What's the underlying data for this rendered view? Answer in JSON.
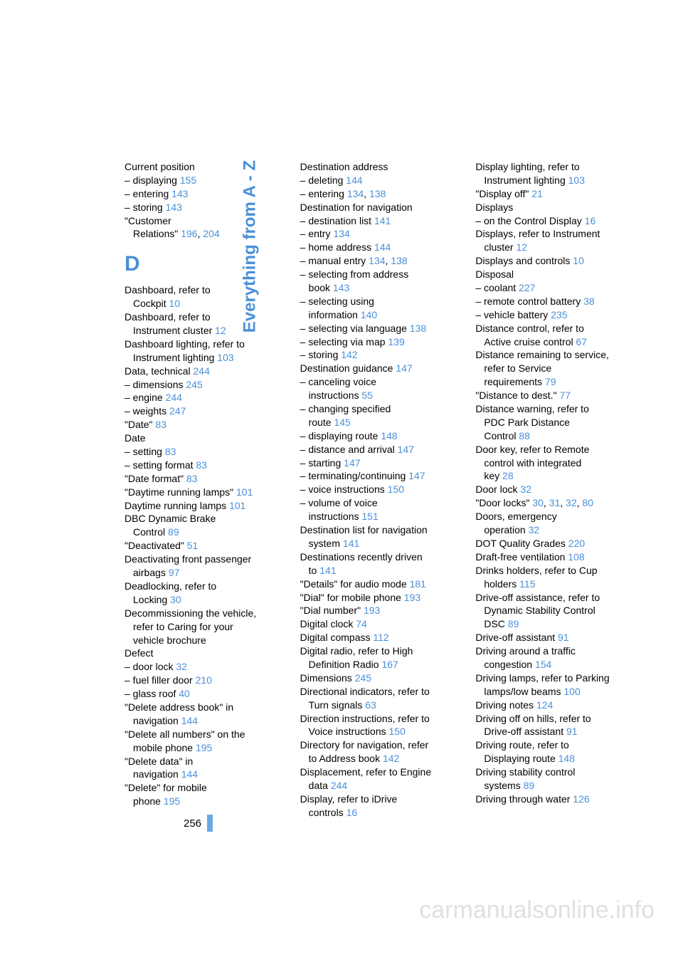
{
  "side_title": "Everything from A - Z",
  "page_number": "256",
  "watermark": "carmanualsonline.info",
  "section_letter": "D",
  "col1": [
    {
      "t": "Current position",
      "wrap": false
    },
    {
      "t": "– displaying ",
      "r": "155",
      "wrap": false
    },
    {
      "t": "– entering ",
      "r": "143",
      "wrap": false
    },
    {
      "t": "– storing ",
      "r": "143",
      "wrap": false
    },
    {
      "t": "\"Customer",
      "wrap": false
    },
    {
      "t": "Relations\" ",
      "r": "196",
      "r2": "204",
      "wrap": true,
      "indent": true
    }
  ],
  "col1b": [
    {
      "t": "Dashboard, refer to",
      "wrap": false
    },
    {
      "t": "Cockpit ",
      "r": "10",
      "indent": true
    },
    {
      "t": "Dashboard, refer to",
      "wrap": false
    },
    {
      "t": "Instrument cluster ",
      "r": "12",
      "indent": true
    },
    {
      "t": "Dashboard lighting, refer to",
      "wrap": false
    },
    {
      "t": "Instrument lighting ",
      "r": "103",
      "indent": true
    },
    {
      "t": "Data, technical ",
      "r": "244"
    },
    {
      "t": "– dimensions ",
      "r": "245"
    },
    {
      "t": "– engine ",
      "r": "244"
    },
    {
      "t": "– weights ",
      "r": "247"
    },
    {
      "t": "\"Date\" ",
      "r": "83"
    },
    {
      "t": "Date"
    },
    {
      "t": "– setting ",
      "r": "83"
    },
    {
      "t": "– setting format ",
      "r": "83"
    },
    {
      "t": "\"Date format\" ",
      "r": "83"
    },
    {
      "t": "\"Daytime running lamps\" ",
      "r": "101"
    },
    {
      "t": "Daytime running lamps ",
      "r": "101"
    },
    {
      "t": "DBC Dynamic Brake"
    },
    {
      "t": "Control ",
      "r": "89",
      "indent": true
    },
    {
      "t": "\"Deactivated\" ",
      "r": "51"
    },
    {
      "t": "Deactivating front passenger"
    },
    {
      "t": "airbags ",
      "r": "97",
      "indent": true
    },
    {
      "t": "Deadlocking, refer to"
    },
    {
      "t": "Locking ",
      "r": "30",
      "indent": true
    },
    {
      "t": "Decommissioning the vehicle,"
    },
    {
      "t": "refer to Caring for your",
      "indent": true
    },
    {
      "t": "vehicle brochure",
      "indent": true
    },
    {
      "t": "Defect"
    },
    {
      "t": "– door lock ",
      "r": "32"
    },
    {
      "t": "– fuel filler door ",
      "r": "210"
    },
    {
      "t": "– glass roof ",
      "r": "40"
    },
    {
      "t": "\"Delete address book\" in"
    },
    {
      "t": "navigation ",
      "r": "144",
      "indent": true
    },
    {
      "t": "\"Delete all numbers\" on the"
    },
    {
      "t": "mobile phone ",
      "r": "195",
      "indent": true
    },
    {
      "t": "\"Delete data\" in"
    },
    {
      "t": "navigation ",
      "r": "144",
      "indent": true
    },
    {
      "t": "\"Delete\" for mobile"
    },
    {
      "t": "phone ",
      "r": "195",
      "indent": true
    }
  ],
  "col2": [
    {
      "t": "Destination address"
    },
    {
      "t": "– deleting ",
      "r": "144"
    },
    {
      "t": "– entering ",
      "r": "134",
      "r2": "138"
    },
    {
      "t": "Destination for navigation"
    },
    {
      "t": "– destination list ",
      "r": "141"
    },
    {
      "t": "– entry ",
      "r": "134"
    },
    {
      "t": "– home address ",
      "r": "144"
    },
    {
      "t": "– manual entry ",
      "r": "134",
      "r2": "138"
    },
    {
      "t": "– selecting from address"
    },
    {
      "t": "book ",
      "r": "143",
      "indent": true
    },
    {
      "t": "– selecting using"
    },
    {
      "t": "information ",
      "r": "140",
      "indent": true
    },
    {
      "t": "– selecting via language ",
      "r": "138"
    },
    {
      "t": "– selecting via map ",
      "r": "139"
    },
    {
      "t": "– storing ",
      "r": "142"
    },
    {
      "t": "Destination guidance ",
      "r": "147"
    },
    {
      "t": "– canceling voice"
    },
    {
      "t": "instructions ",
      "r": "55",
      "indent": true
    },
    {
      "t": "– changing specified"
    },
    {
      "t": "route ",
      "r": "145",
      "indent": true
    },
    {
      "t": "– displaying route ",
      "r": "148"
    },
    {
      "t": "– distance and arrival ",
      "r": "147"
    },
    {
      "t": "– starting ",
      "r": "147"
    },
    {
      "t": "– terminating/continuing ",
      "r": "147"
    },
    {
      "t": "– voice instructions ",
      "r": "150"
    },
    {
      "t": "– volume of voice"
    },
    {
      "t": "instructions ",
      "r": "151",
      "indent": true
    },
    {
      "t": "Destination list for navigation"
    },
    {
      "t": "system ",
      "r": "141",
      "indent": true
    },
    {
      "t": "Destinations recently driven"
    },
    {
      "t": "to ",
      "r": "141",
      "indent": true
    },
    {
      "t": "\"Details\" for audio mode ",
      "r": "181"
    },
    {
      "t": "\"Dial\" for mobile phone ",
      "r": "193"
    },
    {
      "t": "\"Dial number\" ",
      "r": "193"
    },
    {
      "t": "Digital clock ",
      "r": "74"
    },
    {
      "t": "Digital compass ",
      "r": "112"
    },
    {
      "t": "Digital radio, refer to High"
    },
    {
      "t": "Definition Radio ",
      "r": "167",
      "indent": true
    },
    {
      "t": "Dimensions ",
      "r": "245"
    },
    {
      "t": "Directional indicators, refer to"
    },
    {
      "t": "Turn signals ",
      "r": "63",
      "indent": true
    },
    {
      "t": "Direction instructions, refer to"
    },
    {
      "t": "Voice instructions ",
      "r": "150",
      "indent": true
    },
    {
      "t": "Directory for navigation, refer"
    },
    {
      "t": "to Address book ",
      "r": "142",
      "indent": true
    },
    {
      "t": "Displacement, refer to Engine"
    },
    {
      "t": "data ",
      "r": "244",
      "indent": true
    },
    {
      "t": "Display, refer to iDrive"
    },
    {
      "t": "controls ",
      "r": "16",
      "indent": true
    }
  ],
  "col3": [
    {
      "t": "Display lighting, refer to"
    },
    {
      "t": "Instrument lighting ",
      "r": "103",
      "indent": true
    },
    {
      "t": "\"Display off\" ",
      "r": "21"
    },
    {
      "t": "Displays"
    },
    {
      "t": "– on the Control Display ",
      "r": "16"
    },
    {
      "t": "Displays, refer to Instrument"
    },
    {
      "t": "cluster ",
      "r": "12",
      "indent": true
    },
    {
      "t": "Displays and controls ",
      "r": "10"
    },
    {
      "t": "Disposal"
    },
    {
      "t": "– coolant ",
      "r": "227"
    },
    {
      "t": "– remote control battery ",
      "r": "38"
    },
    {
      "t": "– vehicle battery ",
      "r": "235"
    },
    {
      "t": "Distance control, refer to"
    },
    {
      "t": "Active cruise control ",
      "r": "67",
      "indent": true
    },
    {
      "t": "Distance remaining to service,"
    },
    {
      "t": "refer to Service",
      "indent": true
    },
    {
      "t": "requirements ",
      "r": "79",
      "indent": true
    },
    {
      "t": "\"Distance to dest.\" ",
      "r": "77"
    },
    {
      "t": "Distance warning, refer to"
    },
    {
      "t": "PDC Park Distance",
      "indent": true
    },
    {
      "t": "Control ",
      "r": "88",
      "indent": true
    },
    {
      "t": "Door key, refer to Remote"
    },
    {
      "t": "control with integrated",
      "indent": true
    },
    {
      "t": "key ",
      "r": "28",
      "indent": true
    },
    {
      "t": "Door lock ",
      "r": "32"
    },
    {
      "t": "\"Door locks\" ",
      "r": "30",
      "r2": "31",
      "r3": "32",
      "r4": "80"
    },
    {
      "t": "Doors, emergency"
    },
    {
      "t": "operation ",
      "r": "32",
      "indent": true
    },
    {
      "t": "DOT Quality Grades ",
      "r": "220"
    },
    {
      "t": "Draft-free ventilation ",
      "r": "108"
    },
    {
      "t": "Drinks holders, refer to Cup"
    },
    {
      "t": "holders ",
      "r": "115",
      "indent": true
    },
    {
      "t": "Drive-off assistance, refer to"
    },
    {
      "t": "Dynamic Stability Control",
      "indent": true
    },
    {
      "t": "DSC ",
      "r": "89",
      "indent": true
    },
    {
      "t": "Drive-off assistant ",
      "r": "91"
    },
    {
      "t": "Driving around a traffic"
    },
    {
      "t": "congestion ",
      "r": "154",
      "indent": true
    },
    {
      "t": "Driving lamps, refer to Parking"
    },
    {
      "t": "lamps/low beams ",
      "r": "100",
      "indent": true
    },
    {
      "t": "Driving notes ",
      "r": "124"
    },
    {
      "t": "Driving off on hills, refer to"
    },
    {
      "t": "Drive-off assistant ",
      "r": "91",
      "indent": true
    },
    {
      "t": "Driving route, refer to"
    },
    {
      "t": "Displaying route ",
      "r": "148",
      "indent": true
    },
    {
      "t": "Driving stability control"
    },
    {
      "t": "systems ",
      "r": "89",
      "indent": true
    },
    {
      "t": "Driving through water ",
      "r": "126"
    }
  ]
}
